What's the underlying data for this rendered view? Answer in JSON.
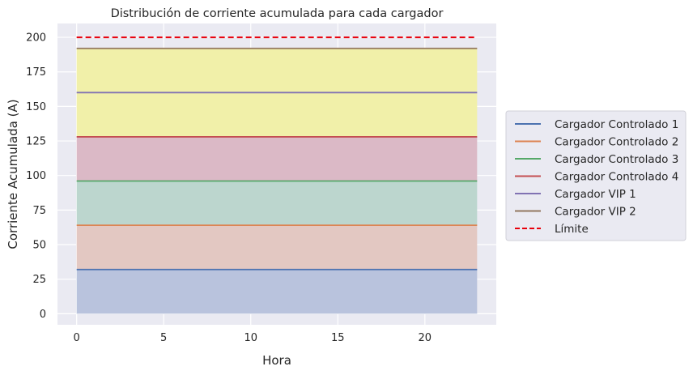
{
  "chart_data": {
    "type": "area",
    "title": "Distribución de corriente acumulada para cada cargador",
    "xlabel": "Hora",
    "ylabel": "Corriente Acumulada (A)",
    "xlim": [
      -1.1,
      24.1
    ],
    "ylim": [
      -8,
      210
    ],
    "x_ticks": [
      0,
      5,
      10,
      15,
      20
    ],
    "y_ticks": [
      0,
      25,
      50,
      75,
      100,
      125,
      150,
      175,
      200
    ],
    "grid": true,
    "legend_position": "center-right outside",
    "x_range": [
      0,
      23
    ],
    "series": [
      {
        "name": "Cargador Controlado 1",
        "line_color": "#4c72b0",
        "fill_color": "#b9c3dd",
        "base": 0,
        "value": 32
      },
      {
        "name": "Cargador Controlado 2",
        "line_color": "#dd8452",
        "fill_color": "#e3c8c2",
        "base": 32,
        "value": 64
      },
      {
        "name": "Cargador Controlado 3",
        "line_color": "#55a868",
        "fill_color": "#bcd6ce",
        "base": 64,
        "value": 96
      },
      {
        "name": "Cargador Controlado 4",
        "line_color": "#c44e52",
        "fill_color": "#dbb9c6",
        "base": 96,
        "value": 128
      },
      {
        "name": "Cargador VIP 1",
        "line_color": "#8172b3",
        "fill_color": "#f1f0a9",
        "base": 128,
        "value": 160
      },
      {
        "name": "Cargador VIP 2",
        "line_color": "#937860",
        "fill_color": "#f1f0a9",
        "base": 160,
        "value": 192
      }
    ],
    "limit": {
      "name": "Límite",
      "value": 200,
      "color": "#e8000b"
    }
  }
}
